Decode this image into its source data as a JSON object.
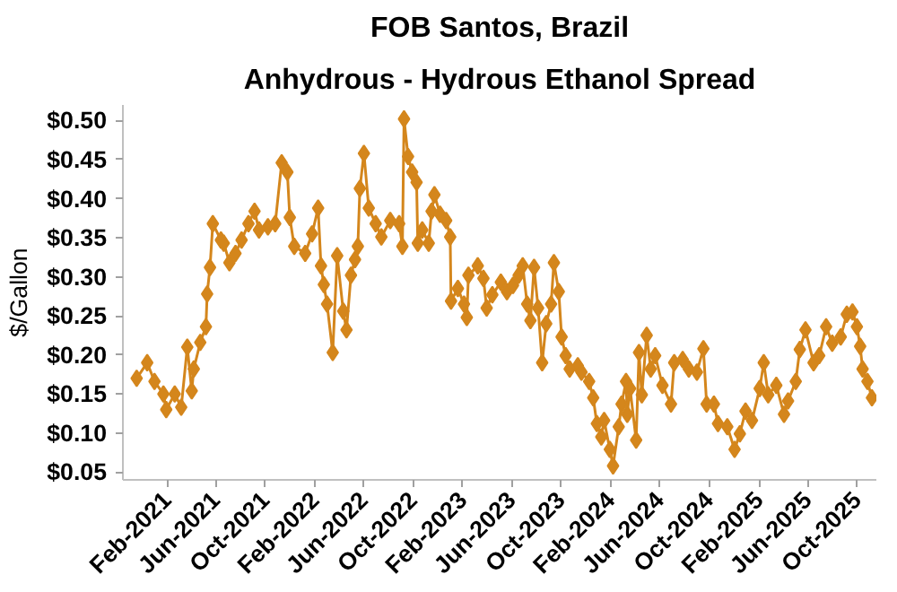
{
  "chart_data": {
    "type": "line",
    "title": "FOB Santos, Brazil",
    "subtitle": "Anhydrous - Hydrous Ethanol Spread",
    "ylabel": "$/Gallon",
    "marker": "diamond",
    "line_style": "solid",
    "grid": false,
    "x": [
      "2020-11-18",
      "2020-12-14",
      "2021-01-01",
      "2021-01-23",
      "2021-01-30",
      "2021-02-20",
      "2021-03-08",
      "2021-03-23",
      "2021-04-03",
      "2021-04-08",
      "2021-04-24",
      "2021-05-08",
      "2021-05-11",
      "2021-05-18",
      "2021-05-25",
      "2021-06-14",
      "2021-06-21",
      "2021-07-05",
      "2021-07-20",
      "2021-08-04",
      "2021-08-21",
      "2021-09-05",
      "2021-09-16",
      "2021-10-08",
      "2021-10-26",
      "2021-11-11",
      "2021-11-25",
      "2021-12-01",
      "2021-12-12",
      "2022-01-08",
      "2022-01-25",
      "2022-02-09",
      "2022-02-16",
      "2022-02-23",
      "2022-03-03",
      "2022-03-17",
      "2022-03-28",
      "2022-04-12",
      "2022-04-20",
      "2022-05-01",
      "2022-05-11",
      "2022-05-18",
      "2022-05-23",
      "2022-06-02",
      "2022-06-14",
      "2022-07-01",
      "2022-07-15",
      "2022-08-06",
      "2022-08-28",
      "2022-09-05",
      "2022-09-09",
      "2022-09-19",
      "2022-09-29",
      "2022-10-10",
      "2022-10-13",
      "2022-10-24",
      "2022-11-09",
      "2022-11-16",
      "2022-11-23",
      "2022-12-07",
      "2022-12-22",
      "2023-01-01",
      "2023-01-03",
      "2023-01-20",
      "2023-02-04",
      "2023-02-11",
      "2023-02-15",
      "2023-03-10",
      "2023-03-24",
      "2023-04-01",
      "2023-04-15",
      "2023-05-06",
      "2023-05-21",
      "2023-06-05",
      "2023-06-19",
      "2023-06-29",
      "2023-07-10",
      "2023-07-18",
      "2023-07-27",
      "2023-08-06",
      "2023-08-16",
      "2023-08-26",
      "2023-09-07",
      "2023-09-14",
      "2023-09-26",
      "2023-10-03",
      "2023-10-13",
      "2023-10-23",
      "2023-11-12",
      "2023-11-21",
      "2023-12-10",
      "2023-12-20",
      "2023-12-29",
      "2024-01-09",
      "2024-01-16",
      "2024-01-30",
      "2024-02-07",
      "2024-02-21",
      "2024-02-28",
      "2024-03-10",
      "2024-03-13",
      "2024-03-20",
      "2024-04-04",
      "2024-04-11",
      "2024-04-18",
      "2024-04-30",
      "2024-05-10",
      "2024-05-21",
      "2024-06-08",
      "2024-06-29",
      "2024-07-07",
      "2024-07-28",
      "2024-08-12",
      "2024-09-01",
      "2024-09-17",
      "2024-09-25",
      "2024-10-13",
      "2024-10-23",
      "2024-11-15",
      "2024-12-03",
      "2024-12-16",
      "2024-12-30",
      "2025-01-15",
      "2025-02-03",
      "2025-02-13",
      "2025-02-24",
      "2025-03-16",
      "2025-04-04",
      "2025-04-14",
      "2025-05-03",
      "2025-05-13",
      "2025-05-27",
      "2025-06-16",
      "2025-06-30",
      "2025-07-17",
      "2025-08-01",
      "2025-08-22",
      "2025-09-06",
      "2025-09-20",
      "2025-10-01",
      "2025-10-09",
      "2025-10-15",
      "2025-10-27",
      "2025-11-07"
    ],
    "series": [
      {
        "color": "#d4861c",
        "values": [
          0.17,
          0.19,
          0.166,
          0.15,
          0.13,
          0.15,
          0.133,
          0.21,
          0.154,
          0.182,
          0.216,
          0.236,
          0.278,
          0.312,
          0.368,
          0.347,
          0.343,
          0.318,
          0.33,
          0.347,
          0.368,
          0.384,
          0.36,
          0.364,
          0.368,
          0.446,
          0.434,
          0.376,
          0.339,
          0.33,
          0.355,
          0.388,
          0.314,
          0.29,
          0.265,
          0.203,
          0.327,
          0.256,
          0.232,
          0.302,
          0.322,
          0.339,
          0.413,
          0.458,
          0.388,
          0.368,
          0.351,
          0.372,
          0.368,
          0.339,
          0.502,
          0.454,
          0.434,
          0.421,
          0.343,
          0.36,
          0.343,
          0.384,
          0.405,
          0.38,
          0.372,
          0.351,
          0.269,
          0.285,
          0.265,
          0.248,
          0.302,
          0.314,
          0.298,
          0.26,
          0.277,
          0.293,
          0.281,
          0.289,
          0.302,
          0.314,
          0.265,
          0.244,
          0.312,
          0.26,
          0.19,
          0.24,
          0.265,
          0.318,
          0.281,
          0.223,
          0.199,
          0.182,
          0.186,
          0.178,
          0.166,
          0.145,
          0.112,
          0.095,
          0.116,
          0.079,
          0.058,
          0.108,
          0.137,
          0.166,
          0.124,
          0.157,
          0.091,
          0.203,
          0.149,
          0.225,
          0.182,
          0.199,
          0.161,
          0.137,
          0.19,
          0.194,
          0.182,
          0.178,
          0.208,
          0.137,
          0.137,
          0.112,
          0.108,
          0.079,
          0.099,
          0.128,
          0.116,
          0.157,
          0.19,
          0.149,
          0.161,
          0.124,
          0.141,
          0.166,
          0.207,
          0.232,
          0.19,
          0.199,
          0.236,
          0.215,
          0.223,
          0.252,
          0.255,
          0.236,
          0.211,
          0.182,
          0.166,
          0.145
        ]
      }
    ],
    "xlim": [
      "2020-10-15",
      "2025-11-18"
    ],
    "xticks": [
      {
        "value": "2021-02-01",
        "label": "Feb-2021"
      },
      {
        "value": "2021-06-01",
        "label": "Jun-2021"
      },
      {
        "value": "2021-10-01",
        "label": "Oct-2021"
      },
      {
        "value": "2022-02-01",
        "label": "Feb-2022"
      },
      {
        "value": "2022-06-01",
        "label": "Jun-2022"
      },
      {
        "value": "2022-10-01",
        "label": "Oct-2022"
      },
      {
        "value": "2023-02-01",
        "label": "Feb-2023"
      },
      {
        "value": "2023-06-01",
        "label": "Jun-2023"
      },
      {
        "value": "2023-10-01",
        "label": "Oct-2023"
      },
      {
        "value": "2024-02-01",
        "label": "Feb-2024"
      },
      {
        "value": "2024-06-01",
        "label": "Jun-2024"
      },
      {
        "value": "2024-10-01",
        "label": "Oct-2024"
      },
      {
        "value": "2025-02-01",
        "label": "Feb-2025"
      },
      {
        "value": "2025-06-01",
        "label": "Jun-2025"
      },
      {
        "value": "2025-10-01",
        "label": "Oct-2025"
      }
    ],
    "ylim": [
      0.04,
      0.52
    ],
    "yticks": [
      {
        "value": 0.05,
        "label": "$0.05"
      },
      {
        "value": 0.1,
        "label": "$0.10"
      },
      {
        "value": 0.15,
        "label": "$0.15"
      },
      {
        "value": 0.2,
        "label": "$0.20"
      },
      {
        "value": 0.25,
        "label": "$0.25"
      },
      {
        "value": 0.3,
        "label": "$0.30"
      },
      {
        "value": 0.35,
        "label": "$0.35"
      },
      {
        "value": 0.4,
        "label": "$0.40"
      },
      {
        "value": 0.45,
        "label": "$0.45"
      },
      {
        "value": 0.5,
        "label": "$0.50"
      }
    ]
  }
}
